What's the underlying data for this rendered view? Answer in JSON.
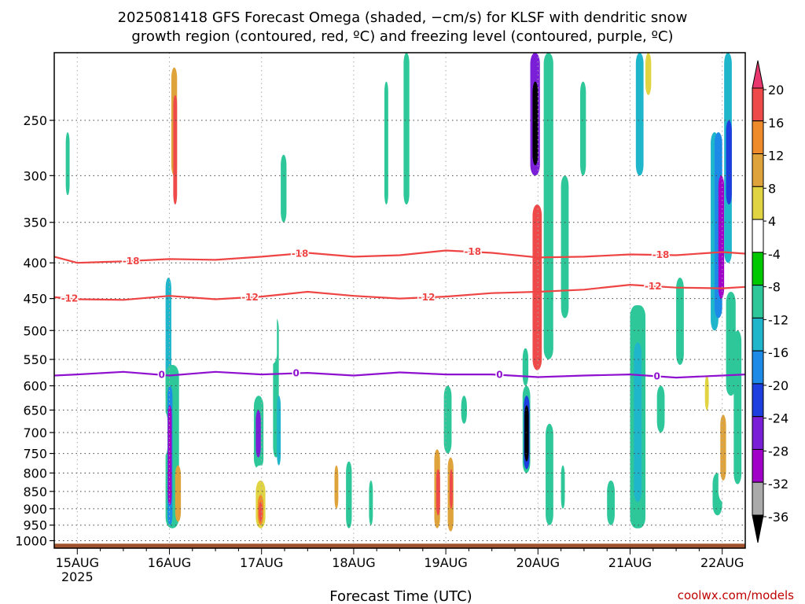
{
  "chart_data": {
    "type": "heatmap",
    "title_lines": [
      "2025081418 GFS Forecast Omega (shaded, −cm/s) for KLSF with dendritic snow",
      "growth region (contoured, red, ºC) and freezing level (contoured, purple, ºC)"
    ],
    "xlabel": "Forecast Time (UTC)",
    "x_ticks": [
      "15AUG",
      "16AUG",
      "17AUG",
      "18AUG",
      "19AUG",
      "20AUG",
      "21AUG",
      "22AUG"
    ],
    "x_year_label": "2025",
    "x_hours": [
      0,
      24,
      48,
      72,
      96,
      120,
      144,
      168
    ],
    "xlim_hours": [
      -6,
      174
    ],
    "y_levels": [
      250,
      300,
      350,
      400,
      450,
      500,
      550,
      600,
      650,
      700,
      750,
      800,
      850,
      900,
      950,
      1000
    ],
    "ylim_hpa": [
      200,
      1025
    ],
    "y_scale": "log-pressure",
    "grid": "dotted",
    "surface_color": "#a0522d",
    "surface_pressure_hpa": 1010,
    "colorbar": {
      "labels": [
        "20",
        "16",
        "12",
        "8",
        "4",
        "-4",
        "-8",
        "-12",
        "-16",
        "-20",
        "-24",
        "-28",
        "-32",
        "-36"
      ],
      "colors": [
        "#e8366e",
        "#ef4a4a",
        "#ef8b2a",
        "#dfa33c",
        "#e0d442",
        "#ffffff",
        "#00c800",
        "#2ec79a",
        "#1fb6cb",
        "#1e8ae8",
        "#1e3fe0",
        "#7a1ed8",
        "#a000c8",
        "#aaaaaa",
        "#000000"
      ],
      "extend": "both"
    },
    "contours": [
      {
        "label": "-18",
        "color": "#ee4444",
        "points": [
          [
            -6,
            392
          ],
          [
            0,
            400
          ],
          [
            12,
            398
          ],
          [
            24,
            395
          ],
          [
            36,
            396
          ],
          [
            48,
            392
          ],
          [
            60,
            387
          ],
          [
            72,
            392
          ],
          [
            84,
            390
          ],
          [
            96,
            384
          ],
          [
            108,
            387
          ],
          [
            120,
            393
          ],
          [
            132,
            392
          ],
          [
            144,
            389
          ],
          [
            156,
            390
          ],
          [
            168,
            386
          ],
          [
            174,
            388
          ]
        ],
        "label_hours": [
          14,
          58,
          103,
          152
        ]
      },
      {
        "label": "-12",
        "color": "#ee4444",
        "points": [
          [
            -6,
            448
          ],
          [
            0,
            451
          ],
          [
            12,
            452
          ],
          [
            24,
            446
          ],
          [
            36,
            451
          ],
          [
            48,
            447
          ],
          [
            60,
            440
          ],
          [
            72,
            446
          ],
          [
            84,
            450
          ],
          [
            96,
            447
          ],
          [
            108,
            442
          ],
          [
            120,
            440
          ],
          [
            132,
            437
          ],
          [
            144,
            430
          ],
          [
            156,
            434
          ],
          [
            168,
            435
          ],
          [
            174,
            433
          ]
        ],
        "label_hours": [
          -2,
          45,
          91,
          150
        ]
      },
      {
        "label": "0",
        "color": "#9010d0",
        "points": [
          [
            -6,
            580
          ],
          [
            0,
            578
          ],
          [
            12,
            573
          ],
          [
            24,
            580
          ],
          [
            36,
            573
          ],
          [
            48,
            578
          ],
          [
            60,
            575
          ],
          [
            72,
            580
          ],
          [
            84,
            574
          ],
          [
            96,
            578
          ],
          [
            108,
            578
          ],
          [
            120,
            583
          ],
          [
            132,
            580
          ],
          [
            144,
            578
          ],
          [
            156,
            584
          ],
          [
            168,
            580
          ],
          [
            174,
            578
          ]
        ],
        "label_hours": [
          22,
          57,
          110,
          151
        ]
      }
    ],
    "shaded_blobs": [
      {
        "level": "4",
        "hours": [
          -0.5,
          0.5
        ],
        "p": [
          200,
          450
        ]
      },
      {
        "level": "4",
        "hours": [
          2,
          3
        ],
        "p": [
          200,
          400
        ]
      },
      {
        "level": "-8",
        "hours": [
          -3,
          -2
        ],
        "p": [
          260,
          320
        ]
      },
      {
        "level": "4",
        "hours": [
          14,
          15.5
        ],
        "p": [
          220,
          330
        ]
      },
      {
        "level": "4",
        "hours": [
          18,
          19.5
        ],
        "p": [
          200,
          360
        ]
      },
      {
        "level": "4",
        "hours": [
          22,
          25
        ],
        "p": [
          210,
          660
        ]
      },
      {
        "level": "12",
        "hours": [
          24.5,
          26
        ],
        "p": [
          210,
          300
        ]
      },
      {
        "level": "20",
        "hours": [
          25,
          26
        ],
        "p": [
          230,
          330
        ]
      },
      {
        "level": "-12",
        "hours": [
          23,
          24.5
        ],
        "p": [
          420,
          640
        ]
      },
      {
        "level": "-8",
        "hours": [
          23,
          26.5
        ],
        "p": [
          560,
          960
        ]
      },
      {
        "level": "-16",
        "hours": [
          23.5,
          24.8
        ],
        "p": [
          600,
          950
        ]
      },
      {
        "level": "-28",
        "hours": [
          23.6,
          24.6
        ],
        "p": [
          640,
          890
        ]
      },
      {
        "level": "12",
        "hours": [
          25.5,
          27
        ],
        "p": [
          780,
          940
        ]
      },
      {
        "level": "4",
        "hours": [
          21,
          23.5
        ],
        "p": [
          650,
          760
        ]
      },
      {
        "level": "4",
        "hours": [
          27,
          29
        ],
        "p": [
          500,
          700
        ]
      },
      {
        "level": "4",
        "hours": [
          35,
          36.5
        ],
        "p": [
          210,
          290
        ]
      },
      {
        "level": "4",
        "hours": [
          43,
          45
        ],
        "p": [
          200,
          420
        ]
      },
      {
        "level": "4",
        "hours": [
          46,
          48
        ],
        "p": [
          640,
          720
        ]
      },
      {
        "level": "-8",
        "hours": [
          46,
          48.5
        ],
        "p": [
          620,
          790
        ]
      },
      {
        "level": "-24",
        "hours": [
          46.5,
          47.8
        ],
        "p": [
          650,
          760
        ]
      },
      {
        "level": "4",
        "hours": [
          46,
          50
        ],
        "p": [
          780,
          990
        ]
      },
      {
        "level": "8",
        "hours": [
          46.5,
          49
        ],
        "p": [
          820,
          960
        ]
      },
      {
        "level": "16",
        "hours": [
          47,
          48.5
        ],
        "p": [
          860,
          950
        ]
      },
      {
        "level": "20",
        "hours": [
          47.3,
          48.2
        ],
        "p": [
          880,
          940
        ]
      },
      {
        "level": "-8",
        "hours": [
          51,
          52.5
        ],
        "p": [
          480,
          760
        ]
      },
      {
        "level": "-12",
        "hours": [
          52,
          53
        ],
        "p": [
          620,
          780
        ]
      },
      {
        "level": "-8",
        "hours": [
          53,
          54.5
        ],
        "p": [
          280,
          350
        ]
      },
      {
        "level": "4",
        "hours": [
          48,
          52
        ],
        "p": [
          360,
          560
        ]
      },
      {
        "level": "4",
        "hours": [
          58,
          60
        ],
        "p": [
          200,
          280
        ]
      },
      {
        "level": "4",
        "hours": [
          63,
          64.5
        ],
        "p": [
          600,
          700
        ]
      },
      {
        "level": "4",
        "hours": [
          66,
          68
        ],
        "p": [
          730,
          960
        ]
      },
      {
        "level": "12",
        "hours": [
          67,
          68
        ],
        "p": [
          780,
          900
        ]
      },
      {
        "level": "4",
        "hours": [
          72,
          73
        ],
        "p": [
          200,
          250
        ]
      },
      {
        "level": "-8",
        "hours": [
          70,
          71.5
        ],
        "p": [
          770,
          960
        ]
      },
      {
        "level": "-8",
        "hours": [
          76,
          77
        ],
        "p": [
          820,
          950
        ]
      },
      {
        "level": "4",
        "hours": [
          78,
          80
        ],
        "p": [
          680,
          880
        ]
      },
      {
        "level": "-8",
        "hours": [
          80,
          81
        ],
        "p": [
          220,
          330
        ]
      },
      {
        "level": "4",
        "hours": [
          82,
          84
        ],
        "p": [
          210,
          300
        ]
      },
      {
        "level": "-8",
        "hours": [
          85,
          86.5
        ],
        "p": [
          200,
          330
        ]
      },
      {
        "level": "4",
        "hours": [
          88,
          90
        ],
        "p": [
          210,
          380
        ]
      },
      {
        "level": "4",
        "hours": [
          92,
          94
        ],
        "p": [
          720,
          980
        ]
      },
      {
        "level": "12",
        "hours": [
          93,
          94.5
        ],
        "p": [
          740,
          960
        ]
      },
      {
        "level": "20",
        "hours": [
          93.5,
          94.5
        ],
        "p": [
          790,
          920
        ]
      },
      {
        "level": "4",
        "hours": [
          94,
          95.5
        ],
        "p": [
          200,
          500
        ]
      },
      {
        "level": "-16",
        "hours": [
          96,
          97
        ],
        "p": [
          620,
          700
        ]
      },
      {
        "level": "-8",
        "hours": [
          95.5,
          97.5
        ],
        "p": [
          600,
          750
        ]
      },
      {
        "level": "12",
        "hours": [
          96.5,
          98
        ],
        "p": [
          760,
          970
        ]
      },
      {
        "level": "20",
        "hours": [
          97,
          97.8
        ],
        "p": [
          790,
          900
        ]
      },
      {
        "level": "4",
        "hours": [
          98,
          99.5
        ],
        "p": [
          220,
          400
        ]
      },
      {
        "level": "-8",
        "hours": [
          100,
          101.5
        ],
        "p": [
          620,
          680
        ]
      },
      {
        "level": "4",
        "hours": [
          107,
          108.5
        ],
        "p": [
          210,
          280
        ]
      },
      {
        "level": "-24",
        "hours": [
          118,
          120.5
        ],
        "p": [
          200,
          300
        ]
      },
      {
        "level": "-36",
        "hours": [
          118.6,
          120
        ],
        "p": [
          220,
          290
        ]
      },
      {
        "level": "4",
        "hours": [
          118,
          121.5
        ],
        "p": [
          310,
          580
        ]
      },
      {
        "level": "20",
        "hours": [
          118.6,
          121
        ],
        "p": [
          330,
          570
        ]
      },
      {
        "level": "-8",
        "hours": [
          116,
          117.5
        ],
        "p": [
          530,
          600
        ]
      },
      {
        "level": "-8",
        "hours": [
          116,
          118
        ],
        "p": [
          600,
          800
        ]
      },
      {
        "level": "-20",
        "hours": [
          116.3,
          117.8
        ],
        "p": [
          620,
          790
        ]
      },
      {
        "level": "-36",
        "hours": [
          116.5,
          117.6
        ],
        "p": [
          640,
          770
        ]
      },
      {
        "level": "4",
        "hours": [
          116,
          120
        ],
        "p": [
          850,
          960
        ]
      },
      {
        "level": "-8",
        "hours": [
          121.5,
          124
        ],
        "p": [
          200,
          550
        ]
      },
      {
        "level": "-8",
        "hours": [
          126,
          128
        ],
        "p": [
          300,
          480
        ]
      },
      {
        "level": "4",
        "hours": [
          124,
          126
        ],
        "p": [
          440,
          520
        ]
      },
      {
        "level": "-8",
        "hours": [
          122,
          124
        ],
        "p": [
          680,
          950
        ]
      },
      {
        "level": "-8",
        "hours": [
          126,
          127
        ],
        "p": [
          780,
          900
        ]
      },
      {
        "level": "4",
        "hours": [
          128,
          129
        ],
        "p": [
          250,
          300
        ]
      },
      {
        "level": "-8",
        "hours": [
          131,
          132.5
        ],
        "p": [
          220,
          300
        ]
      },
      {
        "level": "4",
        "hours": [
          134,
          136
        ],
        "p": [
          200,
          230
        ]
      },
      {
        "level": "-8",
        "hours": [
          138,
          140
        ],
        "p": [
          820,
          950
        ]
      },
      {
        "level": "4",
        "hours": [
          142,
          144
        ],
        "p": [
          390,
          510
        ]
      },
      {
        "level": "-8",
        "hours": [
          144,
          148
        ],
        "p": [
          460,
          960
        ]
      },
      {
        "level": "-12",
        "hours": [
          145,
          147
        ],
        "p": [
          520,
          880
        ]
      },
      {
        "level": "-12",
        "hours": [
          145.5,
          147.5
        ],
        "p": [
          200,
          300
        ]
      },
      {
        "level": "4",
        "hours": [
          148,
          150
        ],
        "p": [
          200,
          240
        ]
      },
      {
        "level": "8",
        "hours": [
          148,
          149.5
        ],
        "p": [
          200,
          230
        ]
      },
      {
        "level": "4",
        "hours": [
          149,
          152
        ],
        "p": [
          270,
          340
        ]
      },
      {
        "level": "-8",
        "hours": [
          151,
          153
        ],
        "p": [
          600,
          700
        ]
      },
      {
        "level": "-8",
        "hours": [
          156,
          158
        ],
        "p": [
          420,
          560
        ]
      },
      {
        "level": "4",
        "hours": [
          163,
          164.5
        ],
        "p": [
          530,
          660
        ]
      },
      {
        "level": "8",
        "hours": [
          163.5,
          164.5
        ],
        "p": [
          580,
          650
        ]
      },
      {
        "level": "-12",
        "hours": [
          165,
          167
        ],
        "p": [
          260,
          500
        ]
      },
      {
        "level": "-16",
        "hours": [
          166,
          168
        ],
        "p": [
          260,
          480
        ]
      },
      {
        "level": "-28",
        "hours": [
          167,
          168.5
        ],
        "p": [
          300,
          450
        ]
      },
      {
        "level": "-12",
        "hours": [
          168.5,
          170.5
        ],
        "p": [
          200,
          400
        ]
      },
      {
        "level": "-20",
        "hours": [
          169,
          170.5
        ],
        "p": [
          250,
          330
        ]
      },
      {
        "level": "-8",
        "hours": [
          169,
          171.5
        ],
        "p": [
          440,
          620
        ]
      },
      {
        "level": "-8",
        "hours": [
          165.5,
          168
        ],
        "p": [
          800,
          920
        ]
      },
      {
        "level": "4",
        "hours": [
          167,
          169.5
        ],
        "p": [
          640,
          880
        ]
      },
      {
        "level": "12",
        "hours": [
          167.5,
          169
        ],
        "p": [
          660,
          820
        ]
      },
      {
        "level": "-8",
        "hours": [
          171,
          173
        ],
        "p": [
          500,
          830
        ]
      }
    ]
  },
  "credit": "coolwx.com/models"
}
